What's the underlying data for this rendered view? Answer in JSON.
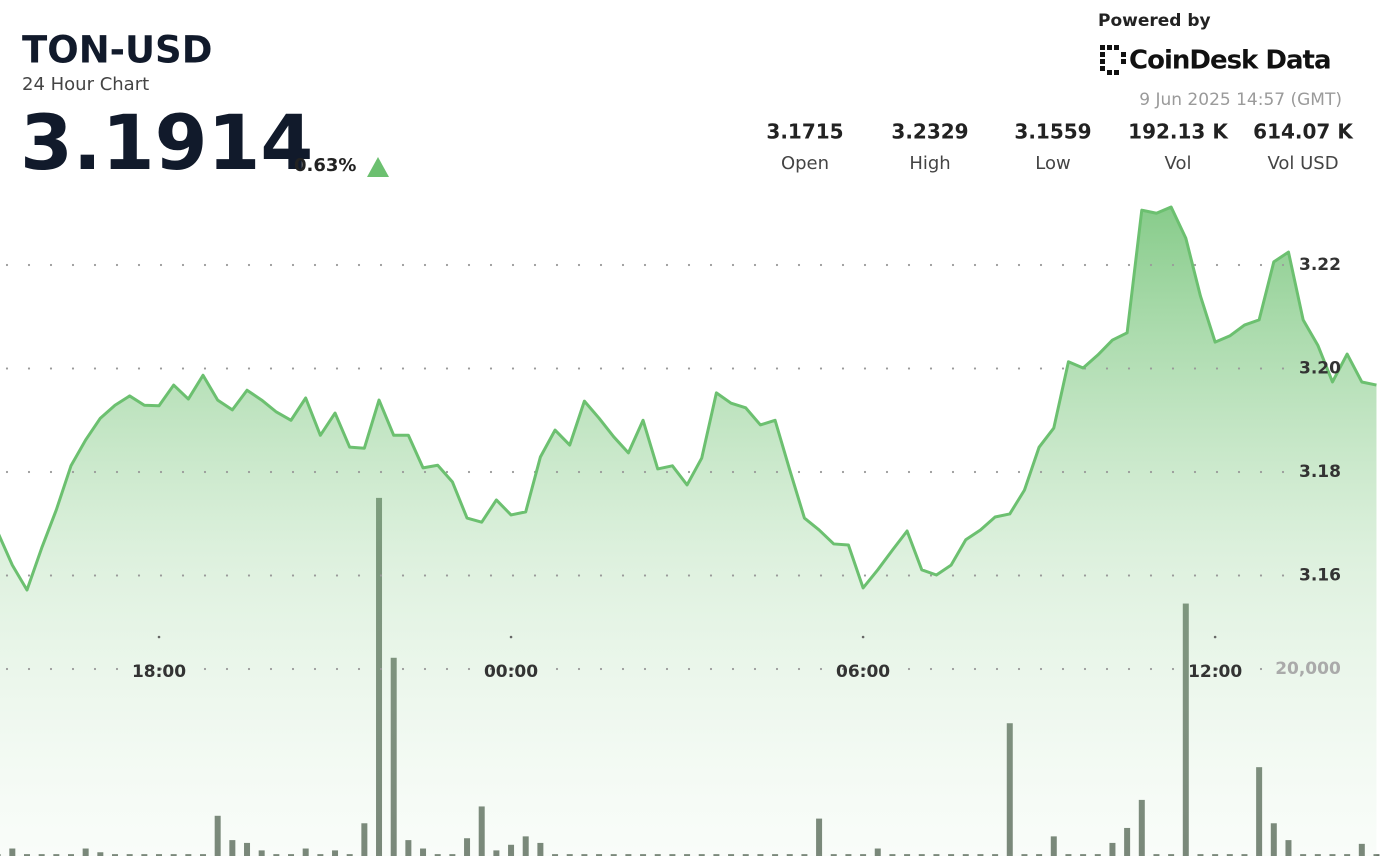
{
  "chart_data": {
    "type": "area",
    "title": "TON-USD",
    "subtitle": "24 Hour Chart",
    "price": "3.1914",
    "change": "0.63%",
    "powered_by": "Powered by",
    "brand": "CoinDesk Data",
    "timestamp": "9 Jun 2025 14:57 (GMT)",
    "stats": [
      {
        "value": "3.1715",
        "label": "Open"
      },
      {
        "value": "3.2329",
        "label": "High"
      },
      {
        "value": "3.1559",
        "label": "Low"
      },
      {
        "value": "192.13 K",
        "label": "Vol"
      },
      {
        "value": "614.07 K",
        "label": "Vol USD"
      }
    ],
    "x": [
      15.25,
      15.5,
      15.75,
      16,
      16.25,
      16.5,
      16.75,
      17,
      17.25,
      17.5,
      17.75,
      18,
      18.25,
      18.5,
      18.75,
      19,
      19.25,
      19.5,
      19.75,
      20,
      20.25,
      20.5,
      20.75,
      21,
      21.25,
      21.5,
      21.75,
      22,
      22.25,
      22.5,
      22.75,
      23,
      23.25,
      23.5,
      23.75,
      24,
      24.25,
      24.5,
      24.75,
      25,
      25.25,
      25.5,
      25.75,
      26,
      26.25,
      26.5,
      26.75,
      27,
      27.25,
      27.5,
      27.75,
      28,
      28.25,
      28.5,
      28.75,
      29,
      29.25,
      29.5,
      29.75,
      30,
      30.25,
      30.5,
      30.75,
      31,
      31.25,
      31.5,
      31.75,
      32,
      32.25,
      32.5,
      32.75,
      33,
      33.25,
      33.5,
      33.75,
      34,
      34.25,
      34.5,
      34.75,
      35,
      35.25,
      35.5,
      35.75,
      36,
      36.25,
      36.5,
      36.75,
      37,
      37.25,
      37.5,
      37.75,
      38,
      38.25,
      38.5,
      38.75
    ],
    "series": [
      {
        "type": "area",
        "color": "#6cc070",
        "values": [
          3.1684,
          3.162,
          3.1572,
          3.1653,
          3.1727,
          3.1812,
          3.1862,
          3.1904,
          3.1929,
          3.1947,
          3.1929,
          3.1928,
          3.1968,
          3.1941,
          3.1987,
          3.1939,
          3.192,
          3.1958,
          3.1939,
          3.1916,
          3.19,
          3.1943,
          3.1871,
          3.1914,
          3.1848,
          3.1846,
          3.1939,
          3.1871,
          3.1871,
          3.1808,
          3.1813,
          3.1781,
          3.1711,
          3.1703,
          3.1746,
          3.1717,
          3.1723,
          3.1829,
          3.1881,
          3.1852,
          3.1937,
          3.1904,
          3.1868,
          3.1837,
          3.19,
          3.1806,
          3.1812,
          3.1775,
          3.1827,
          3.1953,
          3.1933,
          3.1924,
          3.1891,
          3.19,
          3.1804,
          3.1711,
          3.1688,
          3.1661,
          3.1659,
          3.1576,
          3.1611,
          3.1649,
          3.1686,
          3.1611,
          3.1601,
          3.162,
          3.1669,
          3.1688,
          3.1713,
          3.1719,
          3.1765,
          3.1848,
          3.1885,
          3.2013,
          3.2001,
          3.2026,
          3.2055,
          3.2069,
          3.2306,
          3.23,
          3.2312,
          3.2252,
          3.214,
          3.2051,
          3.2063,
          3.2084,
          3.2094,
          3.2206,
          3.2225,
          3.2094,
          3.2045,
          3.1974,
          3.2028,
          3.1974,
          3.1968
        ]
      },
      {
        "type": "bar",
        "axis": "y2",
        "color": "#4f5e4f",
        "values": [
          200,
          800,
          200,
          200,
          200,
          200,
          800,
          400,
          200,
          200,
          200,
          200,
          200,
          200,
          200,
          4300,
          1700,
          1400,
          600,
          200,
          200,
          800,
          200,
          600,
          200,
          3500,
          38300,
          21200,
          1700,
          800,
          200,
          200,
          1900,
          5300,
          600,
          1200,
          2100,
          1400,
          200,
          200,
          200,
          200,
          200,
          200,
          200,
          200,
          200,
          200,
          200,
          200,
          200,
          200,
          200,
          200,
          200,
          200,
          4000,
          200,
          200,
          200,
          800,
          200,
          200,
          200,
          200,
          200,
          200,
          200,
          200,
          14200,
          200,
          200,
          2100,
          200,
          200,
          200,
          1400,
          3000,
          6000,
          200,
          200,
          27000,
          200,
          200,
          200,
          200,
          9500,
          3500,
          1700,
          200,
          200,
          200,
          200,
          1300,
          200
        ]
      }
    ],
    "xlim": [
      15.29,
      38.81
    ],
    "xticks": [
      {
        "value": 18,
        "label": "18:00"
      },
      {
        "value": 24,
        "label": "00:00"
      },
      {
        "value": 30,
        "label": "06:00"
      },
      {
        "value": 36,
        "label": "12:00"
      }
    ],
    "ylim": [
      3.14,
      3.235
    ],
    "yticks": [
      3.16,
      3.18,
      {
        "value": 3.2,
        "label": "3.20"
      },
      3.22
    ],
    "y2lim": [
      0,
      40000
    ],
    "y2ticks": [
      {
        "value": 20000,
        "label": "20,000"
      }
    ],
    "grid": true
  }
}
